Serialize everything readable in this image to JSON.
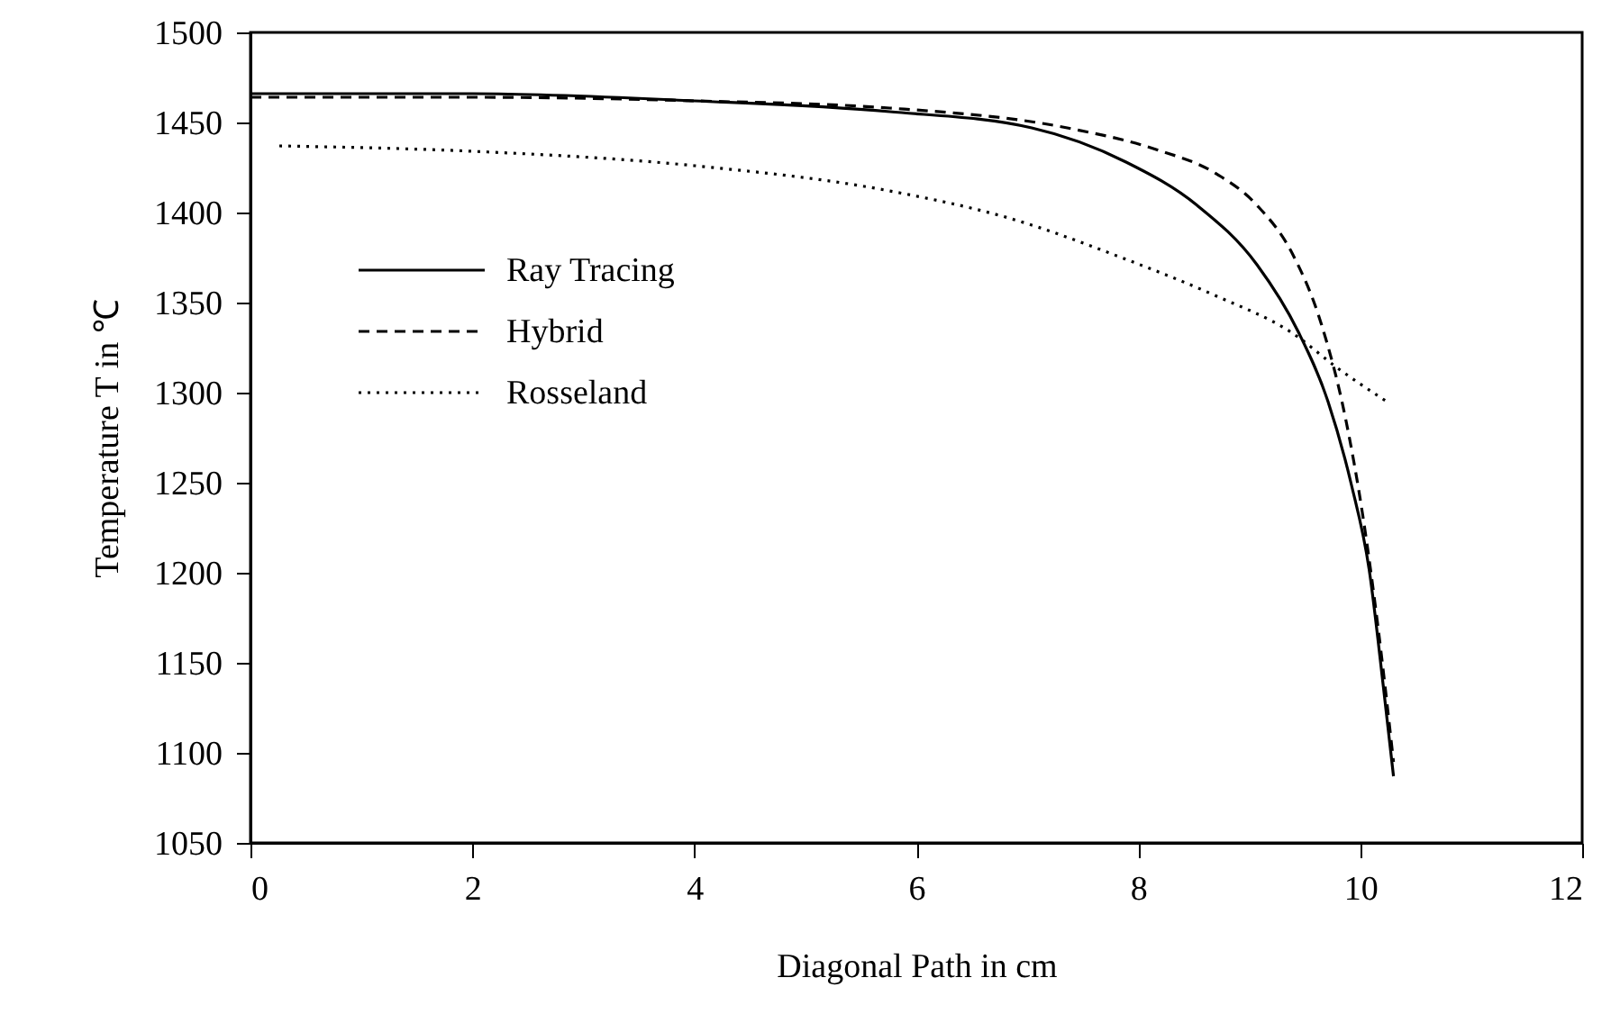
{
  "chart_data": {
    "type": "line",
    "xlabel": "Diagonal Path in cm",
    "ylabel": "Temperature T in ℃",
    "xlim": [
      0,
      12
    ],
    "xticks": [
      0,
      2,
      4,
      6,
      8,
      10,
      12
    ],
    "ylim": [
      1050,
      1500
    ],
    "yticks": [
      1050,
      1100,
      1150,
      1200,
      1250,
      1300,
      1350,
      1400,
      1450,
      1500
    ],
    "grid": false,
    "legend": "top left",
    "marker": "none",
    "series": [
      {
        "name": "Ray Tracing",
        "color": "#000000",
        "line_style": "solid",
        "x": [
          0,
          2,
          4,
          5.76,
          7.04,
          7.89,
          8.53,
          9.07,
          9.44,
          9.71,
          9.92,
          10.08,
          10.21,
          10.3
        ],
        "values": [
          1466,
          1466,
          1462,
          1456,
          1447,
          1428,
          1404,
          1371,
          1334,
          1295,
          1249,
          1202,
          1136,
          1087
        ]
      },
      {
        "name": "Hybrid",
        "color": "#000000",
        "line_style": "dashed",
        "x": [
          0,
          2,
          4,
          5.76,
          7.36,
          8.16,
          8.69,
          9.07,
          9.39,
          9.65,
          9.87,
          10.03,
          10.16,
          10.3
        ],
        "values": [
          1464,
          1464,
          1462,
          1458,
          1447,
          1435,
          1422,
          1404,
          1377,
          1338,
          1285,
          1229,
          1170,
          1095
        ]
      },
      {
        "name": "Rosseland",
        "color": "#000000",
        "line_style": "dotted",
        "x": [
          0.26,
          2,
          4,
          5.76,
          6.83,
          7.89,
          8.69,
          9.39,
          9.81,
          10.24
        ],
        "values": [
          1437,
          1434,
          1426,
          1412,
          1397,
          1374,
          1354,
          1333,
          1313,
          1295
        ]
      }
    ]
  }
}
